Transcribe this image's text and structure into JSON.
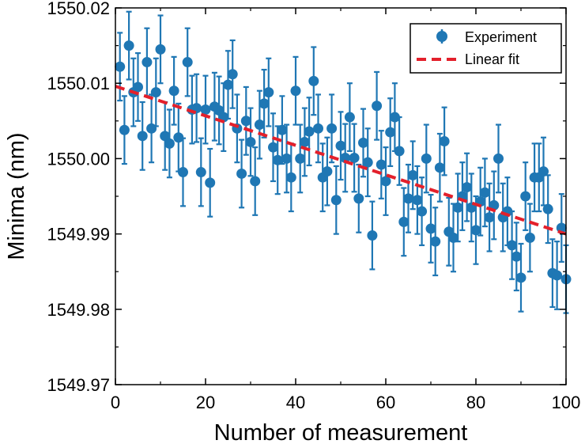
{
  "colors": {
    "series": "#1f77b4",
    "fit": "#e3202b",
    "axis": "#000000"
  },
  "chart_data": {
    "type": "scatter",
    "xlabel": "Number of measurement",
    "ylabel": "Minima (nm)",
    "xlim": [
      0,
      100
    ],
    "ylim": [
      1549.97,
      1550.02
    ],
    "xticks": [
      0,
      20,
      40,
      60,
      80,
      100
    ],
    "xtick_labels": [
      "0",
      "20",
      "40",
      "60",
      "80",
      "100"
    ],
    "yticks": [
      1549.97,
      1549.98,
      1549.99,
      1550.0,
      1550.01,
      1550.02
    ],
    "ytick_labels": [
      "1549.97",
      "1549.98",
      "1549.99",
      "1550.00",
      "1550.01",
      "1550.02"
    ],
    "grid": false,
    "legend_position": "top-right",
    "series": [
      {
        "name": "Experiment",
        "type": "scatter-errorbar",
        "x": [
          1,
          2,
          3,
          4,
          5,
          6,
          7,
          8,
          9,
          10,
          11,
          12,
          13,
          14,
          15,
          16,
          17,
          18,
          19,
          20,
          21,
          22,
          23,
          24,
          25,
          26,
          27,
          28,
          29,
          30,
          31,
          32,
          33,
          34,
          35,
          36,
          37,
          38,
          39,
          40,
          41,
          42,
          43,
          44,
          45,
          46,
          47,
          48,
          49,
          50,
          51,
          52,
          53,
          54,
          55,
          56,
          57,
          58,
          59,
          60,
          61,
          62,
          63,
          64,
          65,
          66,
          67,
          68,
          69,
          70,
          71,
          72,
          73,
          74,
          75,
          76,
          77,
          78,
          79,
          80,
          81,
          82,
          83,
          84,
          85,
          86,
          87,
          88,
          89,
          90,
          91,
          92,
          93,
          94,
          95,
          96,
          97,
          98,
          99,
          100
        ],
        "y": [
          1550.0122,
          1550.0038,
          1550.015,
          1550.0088,
          1550.0095,
          1550.003,
          1550.0128,
          1550.004,
          1550.0088,
          1550.0145,
          1550.003,
          1550.002,
          1550.009,
          1550.0028,
          1549.9982,
          1550.0128,
          1550.0065,
          1550.0067,
          1549.9982,
          1550.0065,
          1549.9968,
          1550.0069,
          1550.0064,
          1550.0055,
          1550.0098,
          1550.0112,
          1550.004,
          1549.998,
          1550.005,
          1550.0022,
          1549.997,
          1550.0045,
          1550.0073,
          1550.0088,
          1550.0015,
          1549.9998,
          1550.0038,
          1550.0,
          1549.9975,
          1550.009,
          1550.0,
          1550.0022,
          1550.0036,
          1550.0103,
          1550.004,
          1549.9975,
          1549.9983,
          1550.004,
          1549.9945,
          1550.0017,
          1550.0001,
          1550.0055,
          1550.0001,
          1549.9947,
          1550.0021,
          1549.9995,
          1549.9898,
          1550.007,
          1549.9992,
          1549.997,
          1550.0035,
          1550.0055,
          1550.001,
          1549.9916,
          1549.9947,
          1549.9978,
          1549.9945,
          1549.993,
          1550.0,
          1549.9907,
          1549.989,
          1549.9988,
          1550.0023,
          1549.9903,
          1549.9895,
          1549.9935,
          1549.995,
          1549.9962,
          1549.9935,
          1549.9905,
          1549.9943,
          1549.9955,
          1549.9922,
          1549.9938,
          1550.0,
          1549.9922,
          1549.993,
          1549.9885,
          1549.987,
          1549.9842,
          1549.995,
          1549.9895,
          1549.9975,
          1549.9975,
          1549.9983,
          1549.9933,
          1549.9848,
          1549.9845,
          1549.9908,
          1549.984
        ],
        "yerr": [
          0.0045,
          0.0045,
          0.0045,
          0.0045,
          0.0045,
          0.0045,
          0.0045,
          0.0045,
          0.0045,
          0.0045,
          0.0045,
          0.0045,
          0.0045,
          0.0045,
          0.0045,
          0.0045,
          0.0045,
          0.0045,
          0.0045,
          0.0045,
          0.0045,
          0.0045,
          0.0045,
          0.0045,
          0.0045,
          0.0045,
          0.0045,
          0.0045,
          0.0045,
          0.0045,
          0.0045,
          0.0045,
          0.0045,
          0.0045,
          0.0045,
          0.0045,
          0.0045,
          0.0045,
          0.0045,
          0.0045,
          0.0045,
          0.0045,
          0.0045,
          0.0045,
          0.0045,
          0.0045,
          0.0045,
          0.0045,
          0.0045,
          0.0045,
          0.0045,
          0.0045,
          0.0045,
          0.0045,
          0.0045,
          0.0045,
          0.0045,
          0.0045,
          0.0045,
          0.0045,
          0.0045,
          0.0045,
          0.0045,
          0.0045,
          0.0045,
          0.0045,
          0.0045,
          0.0045,
          0.0045,
          0.0045,
          0.0045,
          0.0045,
          0.0045,
          0.0045,
          0.0045,
          0.0045,
          0.0045,
          0.0045,
          0.0045,
          0.0045,
          0.0045,
          0.0045,
          0.0045,
          0.0045,
          0.0045,
          0.0045,
          0.0045,
          0.0045,
          0.0045,
          0.0045,
          0.0045,
          0.0045,
          0.0045,
          0.0045,
          0.0045,
          0.0045,
          0.0045,
          0.0045,
          0.0045,
          0.0045
        ]
      },
      {
        "name": "Linear fit",
        "type": "line",
        "style": "dashed",
        "x": [
          0,
          100
        ],
        "y": [
          1550.0096,
          1549.99
        ]
      }
    ]
  }
}
